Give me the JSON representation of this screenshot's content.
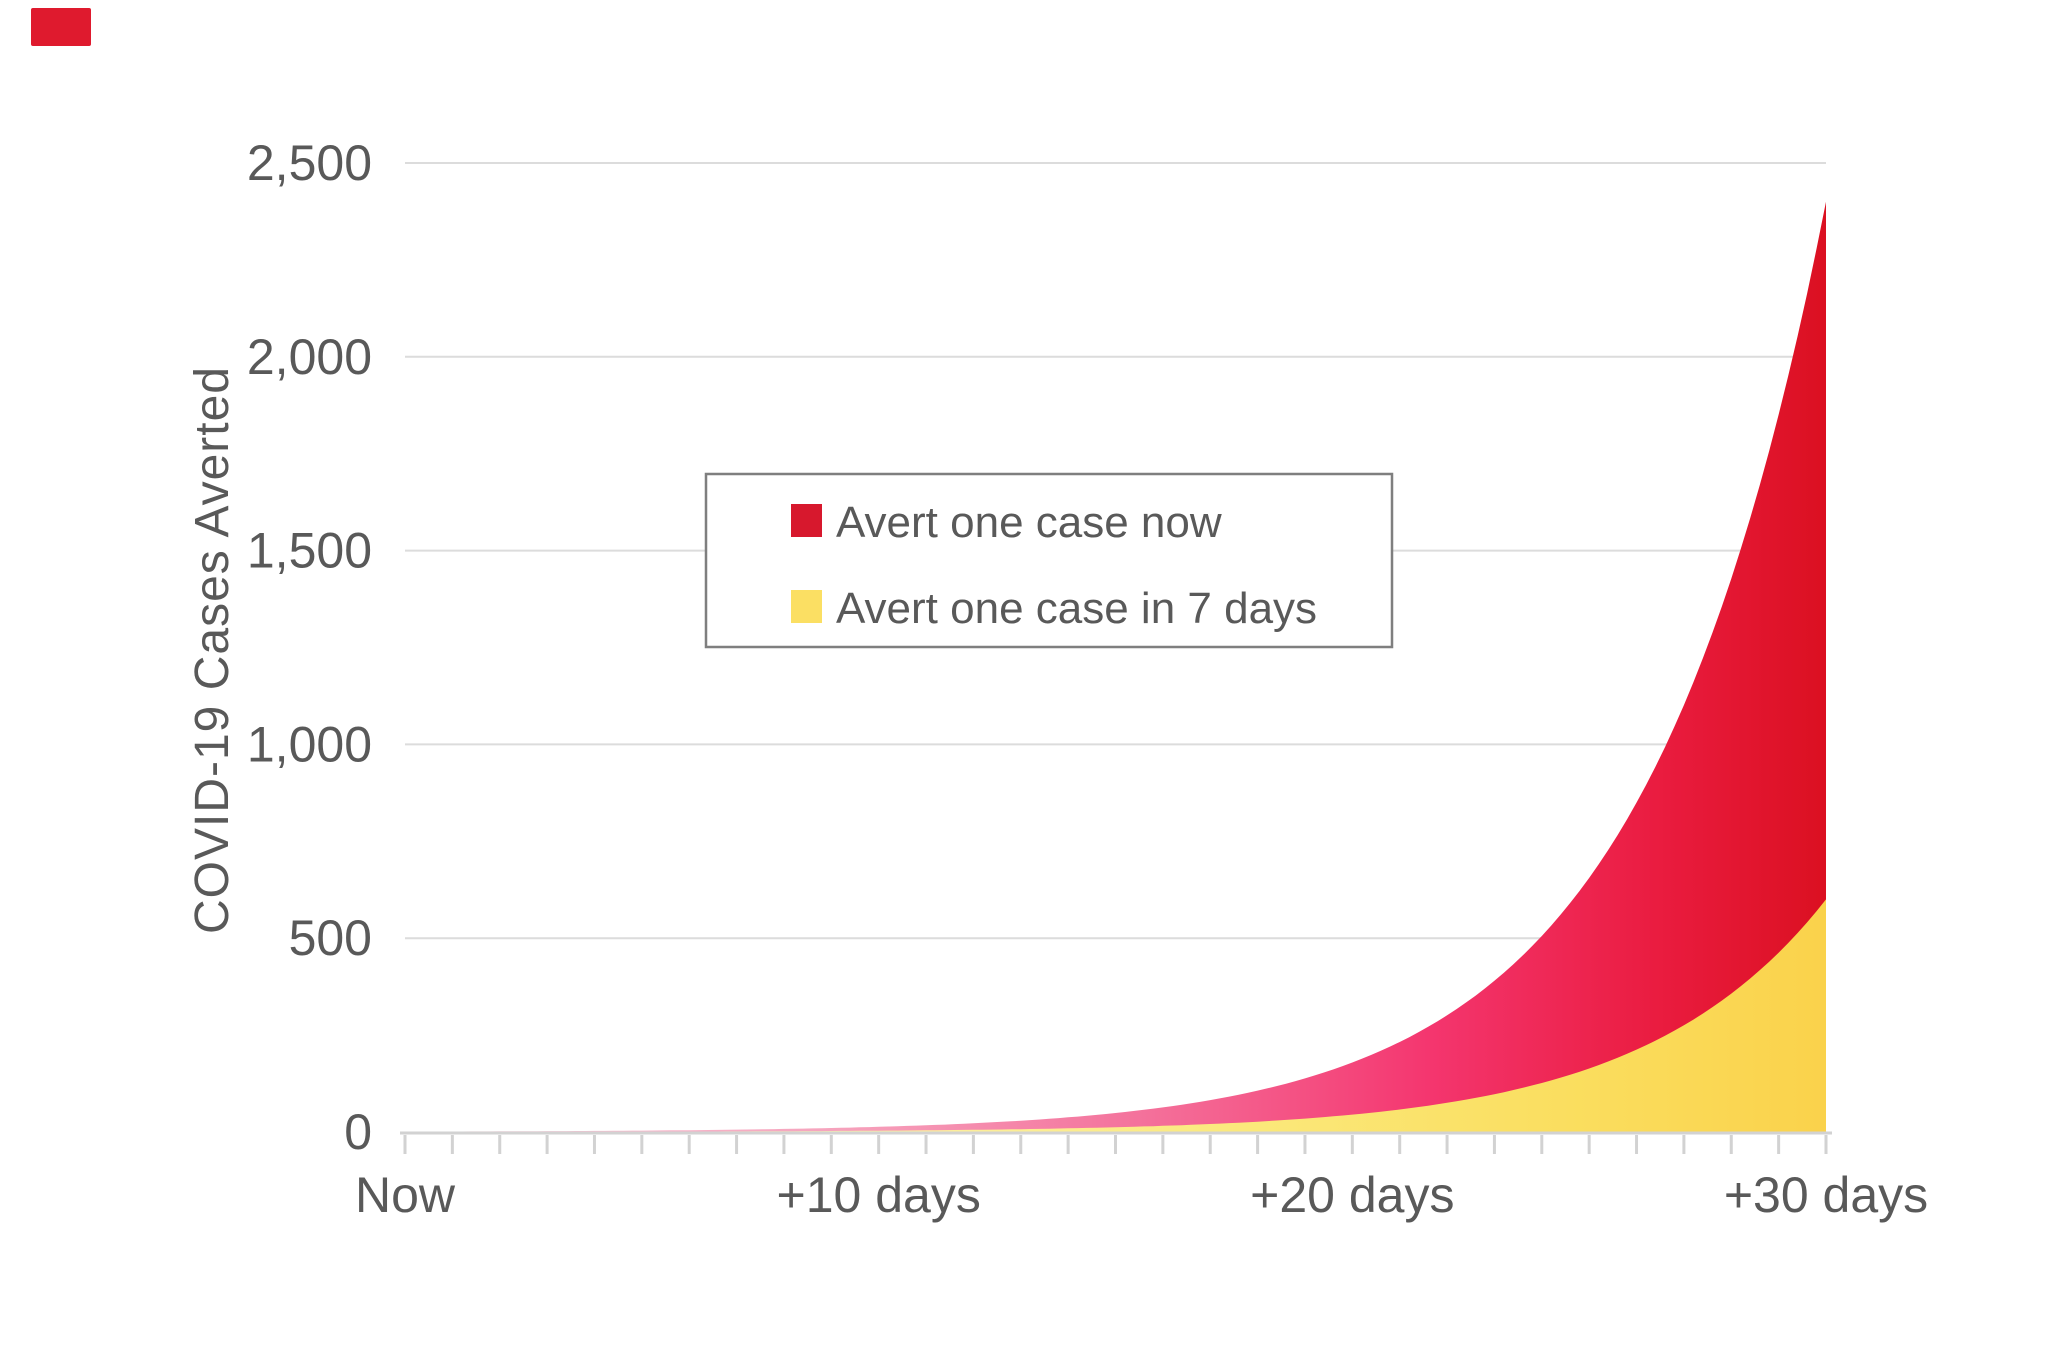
{
  "frame": {
    "corner_marker_color": "#DF1A2E",
    "background": "#FFFFFF"
  },
  "colors": {
    "text": "#595959",
    "grid": "#DCDCDC",
    "axis": "#D2D2D2",
    "tick": "#D2D2D2",
    "legend_border": "#7F7F7F",
    "legend_background": "#FFFFFF"
  },
  "chart_data": {
    "type": "area",
    "title": "",
    "xlabel": "",
    "ylabel": "COVID-19 Cases Averted",
    "xlim": [
      0,
      30
    ],
    "ylim": [
      0,
      2500
    ],
    "x_unit": "days",
    "grid": "horizontal-only",
    "minor_tick_every_days": 1,
    "legend_position": "upper-center",
    "x_days": [
      0,
      1,
      2,
      3,
      4,
      5,
      6,
      7,
      8,
      9,
      10,
      11,
      12,
      13,
      14,
      15,
      16,
      17,
      18,
      19,
      20,
      21,
      22,
      23,
      24,
      25,
      26,
      27,
      28,
      29,
      30
    ],
    "xticks": [
      {
        "day": 0,
        "label": "Now"
      },
      {
        "day": 10,
        "label": "+10 days"
      },
      {
        "day": 20,
        "label": "+20 days"
      },
      {
        "day": 30,
        "label": "+30 days"
      }
    ],
    "yticks": [
      {
        "value": 0,
        "label": "0"
      },
      {
        "value": 500,
        "label": "500"
      },
      {
        "value": 1000,
        "label": "1,000"
      },
      {
        "value": 1500,
        "label": "1,500"
      },
      {
        "value": 2000,
        "label": "2,000"
      },
      {
        "value": 2500,
        "label": "2,500"
      }
    ],
    "series": [
      {
        "name": "Avert one case now",
        "legend_color": "#D7182D",
        "gradient": [
          {
            "offset": 0,
            "color": "#F9CEDA"
          },
          {
            "offset": 0.3,
            "color": "#F6A3BD"
          },
          {
            "offset": 0.52,
            "color": "#F4719B"
          },
          {
            "offset": 0.72,
            "color": "#F4366F"
          },
          {
            "offset": 0.88,
            "color": "#EA1C40"
          },
          {
            "offset": 1,
            "color": "#DB1021"
          }
        ],
        "values": [
          1,
          1.3,
          1.7,
          2.2,
          2.8,
          3.7,
          4.7,
          6.1,
          8,
          10.3,
          13.4,
          17.3,
          22.5,
          29.2,
          37.8,
          49,
          63.5,
          82.3,
          106.7,
          138.3,
          179.2,
          232.3,
          301.1,
          390.2,
          505.8,
          655.6,
          849.8,
          1101.5,
          1427.8,
          1850.7,
          2400
        ]
      },
      {
        "name": "Avert one case in 7 days",
        "legend_color": "#FBDF63",
        "gradient": [
          {
            "offset": 0,
            "color": "#FEF7D0"
          },
          {
            "offset": 0.35,
            "color": "#FCF0A2"
          },
          {
            "offset": 0.6,
            "color": "#FBE87A"
          },
          {
            "offset": 0.82,
            "color": "#FADE5F"
          },
          {
            "offset": 1,
            "color": "#FAD24B"
          }
        ],
        "values": [
          0.25,
          0.32,
          0.42,
          0.55,
          0.71,
          0.92,
          1.19,
          1.54,
          1.99,
          2.58,
          3.35,
          4.34,
          5.62,
          7.29,
          9.45,
          12.25,
          15.9,
          20.6,
          26.7,
          34.6,
          44.8,
          58.1,
          75.3,
          97.6,
          126.5,
          163.9,
          212.5,
          275.4,
          357,
          462.7,
          600
        ]
      }
    ]
  }
}
